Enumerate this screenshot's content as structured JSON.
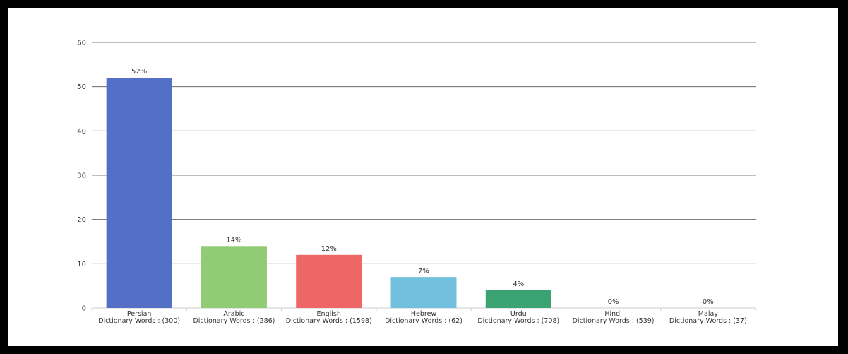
{
  "chart_data": {
    "type": "bar",
    "categories": [
      {
        "name": "Persian",
        "subtitle": "Dictionary Words : (300)"
      },
      {
        "name": "Arabic",
        "subtitle": "Dictionary Words : (286)"
      },
      {
        "name": "English",
        "subtitle": "Dictionary Words : (1598)"
      },
      {
        "name": "Hebrew",
        "subtitle": "Dictionary Words : (62)"
      },
      {
        "name": "Urdu",
        "subtitle": "Dictionary Words : (708)"
      },
      {
        "name": "Hindi",
        "subtitle": "Dictionary Words : (539)"
      },
      {
        "name": "Malay",
        "subtitle": "Dictionary Words : (37)"
      }
    ],
    "values": [
      52,
      14,
      12,
      7,
      4,
      0,
      0
    ],
    "data_labels": [
      "52%",
      "14%",
      "12%",
      "7%",
      "4%",
      "0%",
      "0%"
    ],
    "colors": [
      "#5470c6",
      "#91cc75",
      "#ee6666",
      "#73c0de",
      "#3ba272",
      "#fc8452",
      "#9a60b4"
    ],
    "ylim": [
      0,
      60
    ],
    "yticks": [
      0,
      10,
      20,
      30,
      40,
      50,
      60
    ],
    "grid": true,
    "title": "",
    "xlabel": "",
    "ylabel": ""
  }
}
